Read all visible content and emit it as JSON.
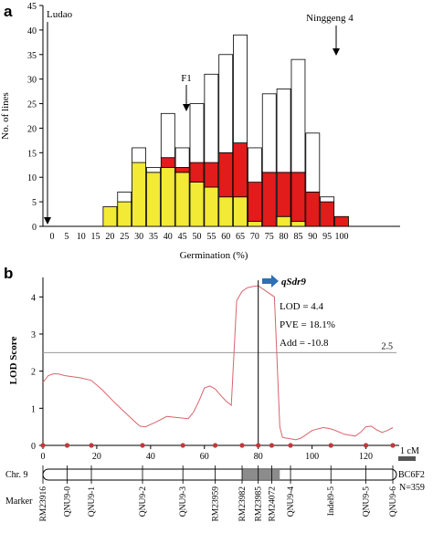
{
  "colors": {
    "yellow": "#f2ea34",
    "red": "#e21b1b",
    "white_bar": "#ffffff",
    "lod_curve": "#d9646a",
    "threshold": "#9a9a9a",
    "qtl_arrow": "#2f6fb5",
    "bin": "#8c8c8c",
    "marker_dot": "#c0393b"
  },
  "panel_a": {
    "label": "a",
    "annotations": {
      "ludao": "Ludao",
      "f1": "F1",
      "ninggeng": "Ninggeng 4"
    }
  },
  "panel_b": {
    "label": "b",
    "qtl_name": "qSdr9",
    "lod_text": "LOD = 4.4",
    "pve_text": "PVE = 18.1%",
    "add_text": "Add = -10.8",
    "threshold_label": "2.5",
    "scale_label": "1 cM",
    "chr_label": "Chr. 9",
    "population_line1": "BC6F2",
    "population_line2": "N=359",
    "marker_label": "Marker"
  },
  "chart_data": [
    {
      "type": "bar",
      "stacked": true,
      "xlabel": "Germination (%)",
      "ylabel": "No. of lines",
      "ylim": [
        0,
        45
      ],
      "yticks": [
        0,
        5,
        10,
        15,
        20,
        25,
        30,
        35,
        40,
        45
      ],
      "categories": [
        "0",
        "5",
        "10",
        "15",
        "20",
        "25",
        "30",
        "35",
        "40",
        "45",
        "50",
        "55",
        "60",
        "65",
        "70",
        "75",
        "80",
        "85",
        "90",
        "95",
        "100"
      ],
      "series": [
        {
          "color": "yellow",
          "values": [
            0,
            0,
            0,
            0,
            4,
            5,
            13,
            11,
            12,
            11,
            9,
            8,
            6,
            6,
            1,
            0,
            2,
            1,
            0,
            0,
            0
          ]
        },
        {
          "color": "red",
          "values": [
            0,
            0,
            0,
            0,
            0,
            0,
            0,
            0,
            2,
            1,
            4,
            5,
            9,
            11,
            8,
            11,
            9,
            10,
            7,
            5,
            2
          ]
        },
        {
          "color": "white",
          "values": [
            0,
            0,
            0,
            0,
            0,
            2,
            3,
            1,
            9,
            4,
            12,
            18,
            20,
            22,
            7,
            16,
            17,
            23,
            12,
            1,
            0
          ]
        }
      ]
    },
    {
      "type": "line",
      "xlabel": "",
      "ylabel": "LOD Score",
      "xlim": [
        0,
        130
      ],
      "ylim": [
        0,
        4.5
      ],
      "xticks": [
        0,
        20,
        40,
        60,
        80,
        100,
        120
      ],
      "yticks": [
        0,
        1,
        2,
        3,
        4
      ],
      "threshold": 2.5,
      "peak_position": 80,
      "peak_lod": 4.4,
      "series": [
        {
          "x": [
            0,
            2,
            4,
            6,
            8,
            10,
            14,
            18,
            22,
            26,
            30,
            34,
            36,
            38,
            42,
            46,
            50,
            54,
            56,
            58,
            60,
            62,
            64,
            66,
            68,
            70,
            72,
            74,
            76,
            78,
            80,
            82,
            84,
            86,
            88,
            89,
            90,
            92,
            94,
            96,
            100,
            104,
            106,
            108,
            112,
            116,
            118,
            120,
            122,
            124,
            126,
            128,
            130
          ],
          "y": [
            1.7,
            1.88,
            1.93,
            1.92,
            1.88,
            1.86,
            1.82,
            1.75,
            1.5,
            1.2,
            0.92,
            0.65,
            0.52,
            0.5,
            0.63,
            0.78,
            0.75,
            0.72,
            0.9,
            1.2,
            1.55,
            1.6,
            1.52,
            1.35,
            1.2,
            1.08,
            3.9,
            4.15,
            4.25,
            4.28,
            4.3,
            4.2,
            4.1,
            4.0,
            0.5,
            0.22,
            0.2,
            0.18,
            0.15,
            0.2,
            0.4,
            0.48,
            0.46,
            0.42,
            0.3,
            0.25,
            0.35,
            0.5,
            0.52,
            0.42,
            0.35,
            0.4,
            0.48
          ]
        }
      ],
      "marker_positions": [
        0,
        9,
        18,
        37,
        52,
        64,
        74,
        80,
        85,
        92,
        107,
        120,
        130
      ],
      "bin_range": [
        74,
        88
      ]
    }
  ],
  "markers": [
    {
      "name": "RM23916",
      "pos": 0
    },
    {
      "name": "QNU9-0",
      "pos": 9
    },
    {
      "name": "QNU9-1",
      "pos": 18
    },
    {
      "name": "QNU9-2",
      "pos": 37
    },
    {
      "name": "QNU9-3",
      "pos": 52
    },
    {
      "name": "RM23959",
      "pos": 64
    },
    {
      "name": "RM23982",
      "pos": 74
    },
    {
      "name": "RM23985",
      "pos": 80
    },
    {
      "name": "RM24072",
      "pos": 85
    },
    {
      "name": "QNU9-4",
      "pos": 92
    },
    {
      "name": "Indel9-5",
      "pos": 107
    },
    {
      "name": "QNU9-5",
      "pos": 120
    },
    {
      "name": "QNU9-6",
      "pos": 130
    }
  ]
}
